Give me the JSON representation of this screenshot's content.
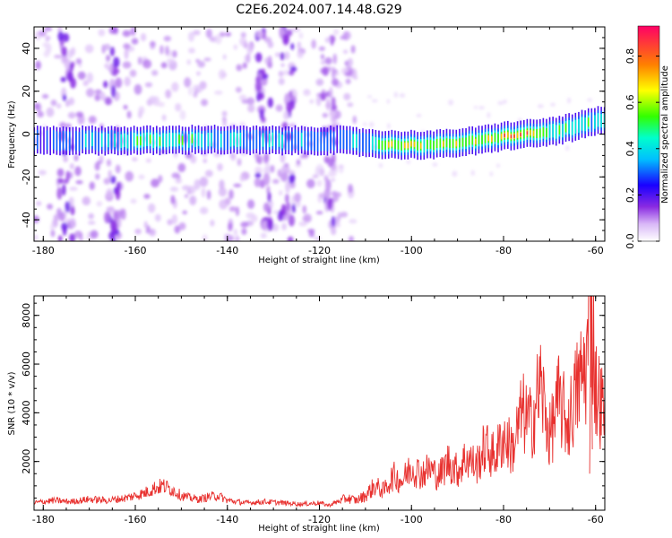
{
  "figure": {
    "title": "C2E6.2024.007.14.48.G29"
  },
  "chart_data": [
    {
      "type": "heatmap",
      "xlabel": "Height of straight line (km)",
      "ylabel": "Frequency (Hz)",
      "xlim": [
        -182,
        -58
      ],
      "ylim": [
        -50,
        50
      ],
      "xticks": [
        -180,
        -160,
        -140,
        -120,
        -100,
        -80,
        -60
      ],
      "yticks": [
        -40,
        -20,
        0,
        20,
        40
      ],
      "colorbar": {
        "label": "Normalized spectral amplitude",
        "range": [
          0.0,
          0.93
        ],
        "ticks": [
          0.0,
          0.2,
          0.4,
          0.6,
          0.8
        ],
        "ticklabels": [
          "0.0",
          "0.2",
          "0.4",
          "0.6",
          "0.8"
        ]
      },
      "ridge": {
        "description": "dominant frequency vs height",
        "x": [
          -182,
          -175,
          -165,
          -155,
          -145,
          -135,
          -125,
          -115,
          -110,
          -105,
          -100,
          -95,
          -90,
          -85,
          -80,
          -75,
          -70,
          -65,
          -60,
          -58
        ],
        "frequency": [
          -3,
          -3,
          -3,
          -3,
          -2.5,
          -3,
          -3,
          -3,
          -4,
          -5,
          -5,
          -5,
          -4,
          -3,
          -1,
          0,
          1,
          3,
          6,
          6
        ],
        "peak_amplitude": [
          0.35,
          0.35,
          0.45,
          0.6,
          0.5,
          0.45,
          0.4,
          0.35,
          0.45,
          0.7,
          0.75,
          0.65,
          0.7,
          0.75,
          0.9,
          0.85,
          0.6,
          0.55,
          0.55,
          0.5
        ]
      },
      "noise_columns_x": [
        -175,
        -165,
        -132,
        -127,
        -118
      ]
    },
    {
      "type": "line",
      "xlabel": "Height of straight line (km)",
      "ylabel": "SNR (10 * v/v)",
      "xlim": [
        -182,
        -58
      ],
      "ylim": [
        0,
        8800
      ],
      "xticks": [
        -180,
        -160,
        -140,
        -120,
        -100,
        -80,
        -60
      ],
      "yticks": [
        2000,
        4000,
        6000,
        8000
      ],
      "color": "#e8312f",
      "series": [
        {
          "name": "SNR",
          "x": [
            -182,
            -178,
            -174,
            -170,
            -166,
            -162,
            -158,
            -156,
            -154,
            -152,
            -150,
            -148,
            -146,
            -144,
            -142,
            -140,
            -136,
            -132,
            -128,
            -124,
            -120,
            -118,
            -116,
            -114,
            -112,
            -110,
            -108,
            -106,
            -104,
            -102,
            -100,
            -98,
            -96,
            -94,
            -92,
            -90,
            -88,
            -86,
            -84,
            -82,
            -80,
            -78,
            -76,
            -74,
            -72,
            -70,
            -68,
            -66,
            -64,
            -62,
            -61,
            -60,
            -59,
            -58
          ],
          "y": [
            300,
            400,
            350,
            450,
            400,
            500,
            700,
            900,
            1000,
            850,
            600,
            500,
            450,
            550,
            600,
            400,
            300,
            350,
            300,
            250,
            300,
            200,
            350,
            500,
            400,
            600,
            1000,
            800,
            1400,
            1200,
            1800,
            1500,
            1700,
            1400,
            2000,
            1600,
            2200,
            1800,
            2600,
            2200,
            3000,
            2500,
            4000,
            3500,
            5200,
            3000,
            4500,
            3500,
            5000,
            6000,
            8800,
            5000,
            4500,
            3800
          ]
        }
      ]
    }
  ]
}
